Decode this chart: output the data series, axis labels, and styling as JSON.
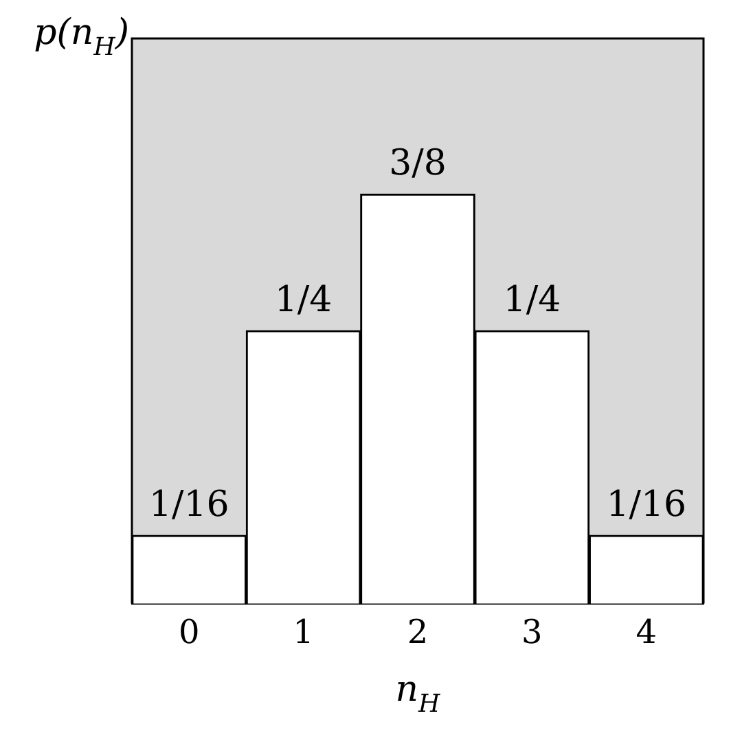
{
  "chart_data": {
    "type": "bar",
    "xlabel": "n$_{H}$",
    "ylabel": "p(n$_{H}$)",
    "categories": [
      "0",
      "1",
      "2",
      "3",
      "4"
    ],
    "values": [
      0.0625,
      0.25,
      0.375,
      0.25,
      0.0625
    ],
    "value_labels": [
      "1/16",
      "1/4",
      "3/8",
      "1/4",
      "1/16"
    ],
    "color": "#ffffff",
    "grid": false,
    "legend": false
  }
}
